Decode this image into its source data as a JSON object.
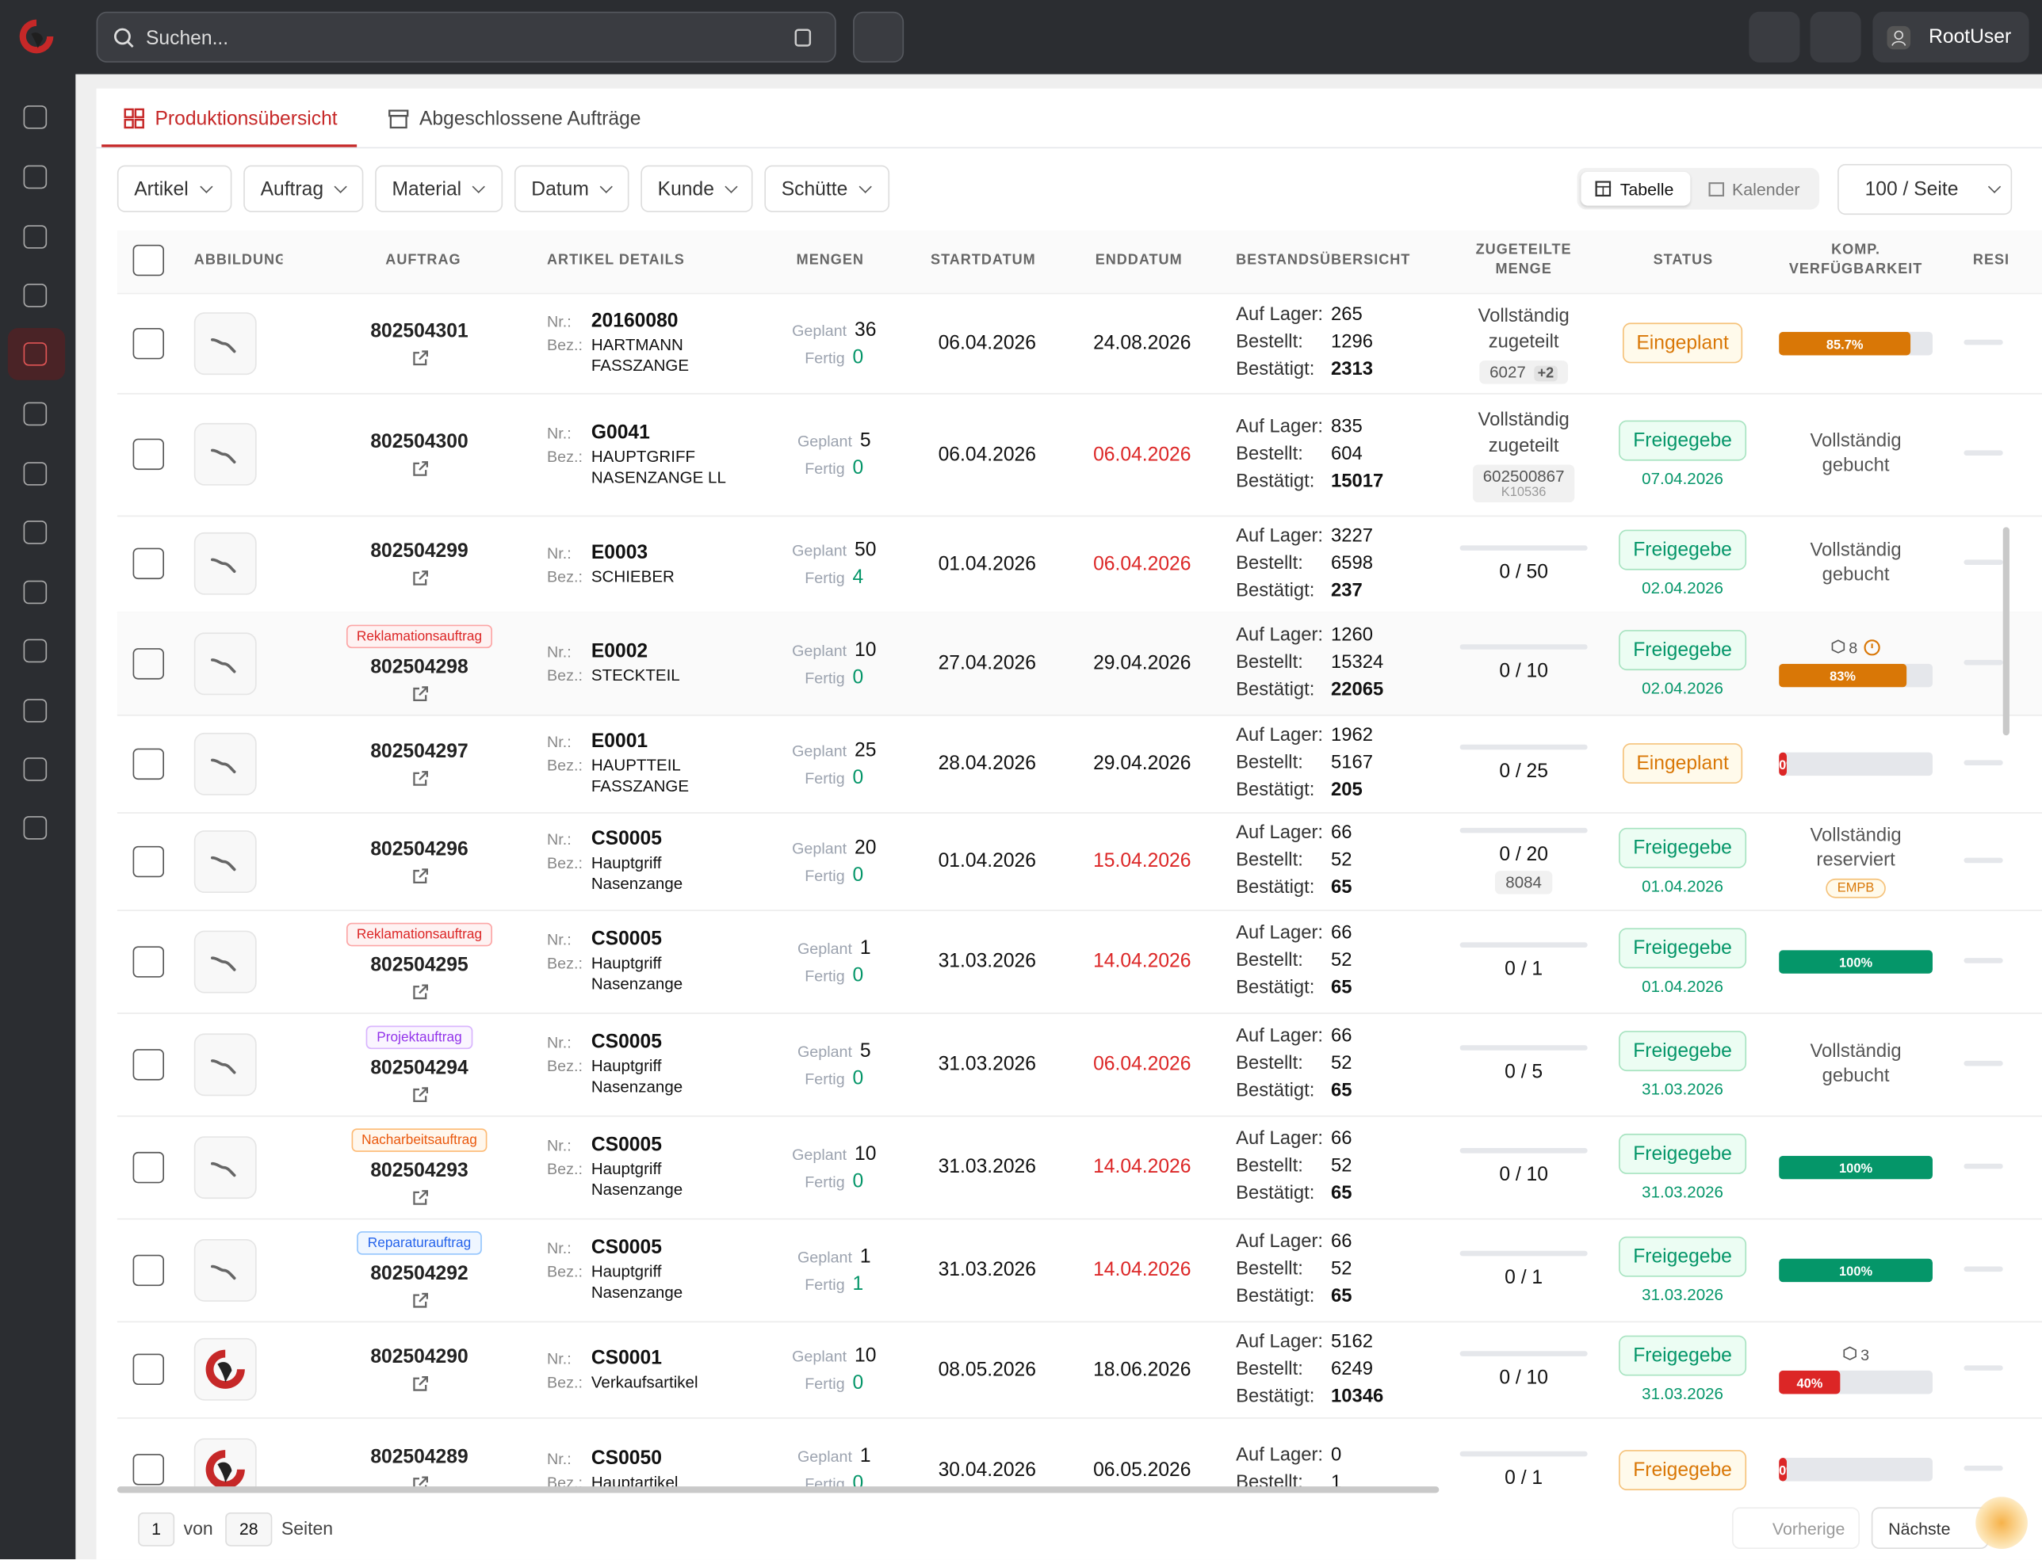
{
  "app": {
    "search_placeholder": "Suchen...",
    "user": "RootUser"
  },
  "tabs": [
    "Produktionsübersicht",
    "Abgeschlossene Aufträge"
  ],
  "filters": [
    "Artikel",
    "Auftrag",
    "Material",
    "Datum",
    "Kunde",
    "Schütte"
  ],
  "views": [
    "Tabelle",
    "Kalender"
  ],
  "page_size": "100 / Seite",
  "columns": [
    "ABBILDUNG",
    "AUFTRAG",
    "ARTIKEL DETAILS",
    "MENGEN",
    "STARTDATUM",
    "ENDDATUM",
    "BESTANDSÜBERSICHT",
    "ZUGETEILTE MENGE",
    "STATUS",
    "KOMP. VERFÜGBARKEIT",
    "RESI"
  ],
  "labels": {
    "nr": "Nr.:",
    "bez": "Bez.:",
    "planned": "Geplant",
    "done": "Fertig",
    "stock": "Auf Lager:",
    "ordered": "Bestellt:",
    "confirmed": "Bestätigt:"
  },
  "rows": [
    {
      "thumb": "part",
      "order": "802504301",
      "nr": "20160080",
      "bez": "HARTMANN FASSZANGE",
      "planned": 36,
      "done": 0,
      "start": "06.04.2026",
      "end": "24.08.2026",
      "end_late": false,
      "stock": 265,
      "ordered": 1296,
      "confirmed": 2313,
      "alloc": {
        "text": "Vollständig zugeteilt",
        "chip": "6027",
        "chip_extra": "+2"
      },
      "status": "Eingeplant",
      "komp": {
        "bar": "85.7%",
        "bar_color": "#d97706"
      }
    },
    {
      "thumb": "part",
      "order": "802504300",
      "nr": "G0041",
      "bez": "HAUPTGRIFF NASENZANGE LL",
      "planned": 5,
      "done": 0,
      "start": "06.04.2026",
      "end": "06.04.2026",
      "end_late": true,
      "stock": 835,
      "ordered": 604,
      "confirmed": 15017,
      "alloc": {
        "text": "Vollständig zugeteilt",
        "chip": "602500867",
        "chip_sub": "K10536"
      },
      "status": "Freigegebe",
      "status_date": "07.04.2026",
      "komp": {
        "text": "Vollständig gebucht"
      }
    },
    {
      "thumb": "part",
      "order": "802504299",
      "nr": "E0003",
      "bez": "SCHIEBER",
      "planned": 50,
      "done": 4,
      "start": "01.04.2026",
      "end": "06.04.2026",
      "end_late": true,
      "stock": 3227,
      "ordered": 6598,
      "confirmed": 237,
      "alloc": {
        "qty": "0 / 50"
      },
      "status": "Freigegebe",
      "status_date": "02.04.2026",
      "komp": {
        "text": "Vollständig gebucht"
      }
    },
    {
      "thumb": "part",
      "order": "802504298",
      "badge": {
        "text": "Reklamationsauftrag",
        "kind": "red"
      },
      "nr": "E0002",
      "bez": "STECKTEIL",
      "planned": 10,
      "done": 0,
      "start": "27.04.2026",
      "end": "29.04.2026",
      "end_late": false,
      "stock": 1260,
      "ordered": 15324,
      "confirmed": 22065,
      "alloc": {
        "qty": "0 / 10"
      },
      "status": "Freigegebe",
      "status_date": "02.04.2026",
      "komp": {
        "bar": "83%",
        "bar_color": "#d97706",
        "count": "8",
        "warn": true
      }
    },
    {
      "thumb": "part",
      "order": "802504297",
      "nr": "E0001",
      "bez": "HAUPTTEIL FASSZANGE",
      "planned": 25,
      "done": 0,
      "start": "28.04.2026",
      "end": "29.04.2026",
      "end_late": false,
      "stock": 1962,
      "ordered": 5167,
      "confirmed": 205,
      "alloc": {
        "qty": "0 / 25"
      },
      "status": "Eingeplant",
      "komp": {
        "bar": "0%",
        "bar_color": "#dc2626"
      }
    },
    {
      "thumb": "part",
      "order": "802504296",
      "nr": "CS0005",
      "bez": "Hauptgriff Nasenzange",
      "planned": 20,
      "done": 0,
      "start": "01.04.2026",
      "end": "15.04.2026",
      "end_late": true,
      "stock": 66,
      "ordered": 52,
      "confirmed": 65,
      "alloc": {
        "qty": "0 / 20",
        "chip": "8084"
      },
      "status": "Freigegebe",
      "status_date": "01.04.2026",
      "komp": {
        "text": "Vollständig reserviert",
        "chip": "EMPB"
      }
    },
    {
      "thumb": "part",
      "order": "802504295",
      "badge": {
        "text": "Reklamationsauftrag",
        "kind": "red"
      },
      "nr": "CS0005",
      "bez": "Hauptgriff Nasenzange",
      "planned": 1,
      "done": 0,
      "start": "31.03.2026",
      "end": "14.04.2026",
      "end_late": true,
      "stock": 66,
      "ordered": 52,
      "confirmed": 65,
      "alloc": {
        "qty": "0 / 1"
      },
      "status": "Freigegebe",
      "status_date": "01.04.2026",
      "komp": {
        "bar": "100%",
        "bar_color": "#059669"
      }
    },
    {
      "thumb": "part",
      "order": "802504294",
      "badge": {
        "text": "Projektauftrag",
        "kind": "purple"
      },
      "nr": "CS0005",
      "bez": "Hauptgriff Nasenzange",
      "planned": 5,
      "done": 0,
      "start": "31.03.2026",
      "end": "06.04.2026",
      "end_late": true,
      "stock": 66,
      "ordered": 52,
      "confirmed": 65,
      "alloc": {
        "qty": "0 / 5"
      },
      "status": "Freigegebe",
      "status_date": "31.03.2026",
      "komp": {
        "text": "Vollständig gebucht"
      }
    },
    {
      "thumb": "part",
      "order": "802504293",
      "badge": {
        "text": "Nacharbeitsauftrag",
        "kind": "orange"
      },
      "nr": "CS0005",
      "bez": "Hauptgriff Nasenzange",
      "planned": 10,
      "done": 0,
      "start": "31.03.2026",
      "end": "14.04.2026",
      "end_late": true,
      "stock": 66,
      "ordered": 52,
      "confirmed": 65,
      "alloc": {
        "qty": "0 / 10"
      },
      "status": "Freigegebe",
      "status_date": "31.03.2026",
      "komp": {
        "bar": "100%",
        "bar_color": "#059669"
      }
    },
    {
      "thumb": "part",
      "order": "802504292",
      "badge": {
        "text": "Reparaturauftrag",
        "kind": "blue"
      },
      "nr": "CS0005",
      "bez": "Hauptgriff Nasenzange",
      "planned": 1,
      "done": 1,
      "start": "31.03.2026",
      "end": "14.04.2026",
      "end_late": true,
      "stock": 66,
      "ordered": 52,
      "confirmed": 65,
      "alloc": {
        "qty": "0 / 1"
      },
      "status": "Freigegebe",
      "status_date": "31.03.2026",
      "komp": {
        "bar": "100%",
        "bar_color": "#059669"
      }
    },
    {
      "thumb": "logo",
      "order": "802504290",
      "nr": "CS0001",
      "bez": "Verkaufsartikel",
      "planned": 10,
      "done": 0,
      "start": "08.05.2026",
      "end": "18.06.2026",
      "end_late": false,
      "stock": 5162,
      "ordered": 6249,
      "confirmed": 10346,
      "alloc": {
        "qty": "0 / 10"
      },
      "status": "Freigegebe",
      "status_date": "31.03.2026",
      "komp": {
        "bar": "40%",
        "bar_color": "#dc2626",
        "count": "3"
      }
    },
    {
      "thumb": "logo",
      "order": "802504289",
      "nr": "CS0050",
      "bez": "Hauptartikel",
      "planned": 1,
      "done": 0,
      "start": "30.04.2026",
      "end": "06.05.2026",
      "end_late": false,
      "stock": 0,
      "ordered": 1,
      "alloc": {
        "qty": "0 / 1"
      },
      "status": "Freigegebe",
      "komp": {
        "bar": "0%",
        "bar_color": "#dc2626"
      }
    }
  ],
  "pagination": {
    "page": 1,
    "of": "von",
    "pages": 28,
    "unit": "Seiten",
    "prev": "Vorherige",
    "next": "Nächste"
  }
}
